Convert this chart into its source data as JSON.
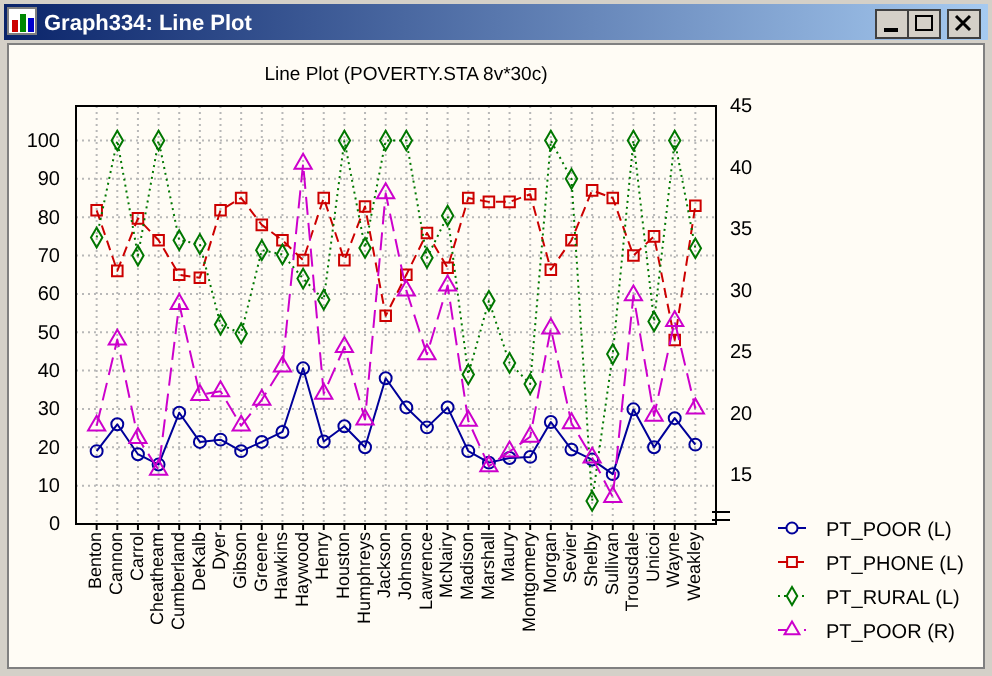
{
  "chart_data": {
    "type": "line",
    "title": "Line Plot (POVERTY.STA 8v*30c)",
    "annotations": [
      "Graph334: Line Plot"
    ],
    "categories": [
      "Benton",
      "Cannon",
      "Carrol",
      "Cheatheam",
      "Cumberland",
      "DeKalb",
      "Dyer",
      "Gibson",
      "Greene",
      "Hawkins",
      "Haywood",
      "Henry",
      "Houston",
      "Humphreys",
      "Jackson",
      "Johnson",
      "Lawrence",
      "McNairy",
      "Madison",
      "Marshall",
      "Maury",
      "Montgomery",
      "Morgan",
      "Sevier",
      "Shelby",
      "Sullivan",
      "Trousdale",
      "Unicoi",
      "Wayne",
      "Weakley"
    ],
    "series": [
      {
        "name": "PT_POOR (L)",
        "color": "#000099",
        "marker": "circle",
        "line_style": "solid",
        "values": [
          19,
          26,
          18.2,
          15.5,
          29,
          21.4,
          22,
          19,
          21.4,
          24,
          40.6,
          21.5,
          25.5,
          20,
          38,
          30.4,
          25.2,
          30.4,
          19,
          16,
          17.2,
          17.5,
          26.6,
          19.4,
          16.8,
          13,
          29.9,
          20,
          27.6,
          20.7
        ]
      },
      {
        "name": "PT_PHONE (L)",
        "color": "#cc0000",
        "marker": "square",
        "line_style": "dashed",
        "values": [
          81.8,
          66,
          79.7,
          74,
          65,
          64.2,
          81.8,
          85,
          78,
          74,
          68.8,
          85,
          68.8,
          82.8,
          54.3,
          65,
          75.9,
          66.8,
          85,
          84,
          84,
          86,
          66.3,
          74,
          87,
          85,
          70,
          75,
          48,
          83
        ]
      },
      {
        "name": "PT_RURAL (L)",
        "color": "#007700",
        "marker": "diamond",
        "line_style": "dotted",
        "values": [
          74.7,
          100,
          70,
          100,
          74,
          73,
          52,
          49.7,
          71.4,
          70.3,
          64,
          58.5,
          100,
          72,
          100,
          100,
          69.4,
          80.4,
          39,
          58.2,
          42,
          36.5,
          100,
          90,
          6,
          44.3,
          100,
          52.8,
          100,
          71.9
        ]
      },
      {
        "name": "PT_POOR (R)",
        "color": "#cc00cc",
        "marker": "triangle",
        "line_style": "dashed",
        "axis": "y2",
        "values": [
          19,
          26,
          18,
          15.4,
          28.9,
          21.5,
          21.8,
          19,
          21.1,
          23.8,
          40.3,
          21.6,
          25.4,
          19.5,
          37.9,
          30,
          24.8,
          30.4,
          19.4,
          15.7,
          16.9,
          18.1,
          26.9,
          19.2,
          16.4,
          13.2,
          29.6,
          19.8,
          27.5,
          20.4
        ]
      }
    ],
    "ylim": [
      0,
      109
    ],
    "yticks": [
      0,
      10,
      20,
      30,
      40,
      50,
      60,
      70,
      80,
      90,
      100
    ],
    "y2lim": [
      11,
      45
    ],
    "y2ticks": [
      15,
      20,
      25,
      30,
      35,
      40,
      45
    ],
    "grid": true,
    "legend": "right"
  }
}
